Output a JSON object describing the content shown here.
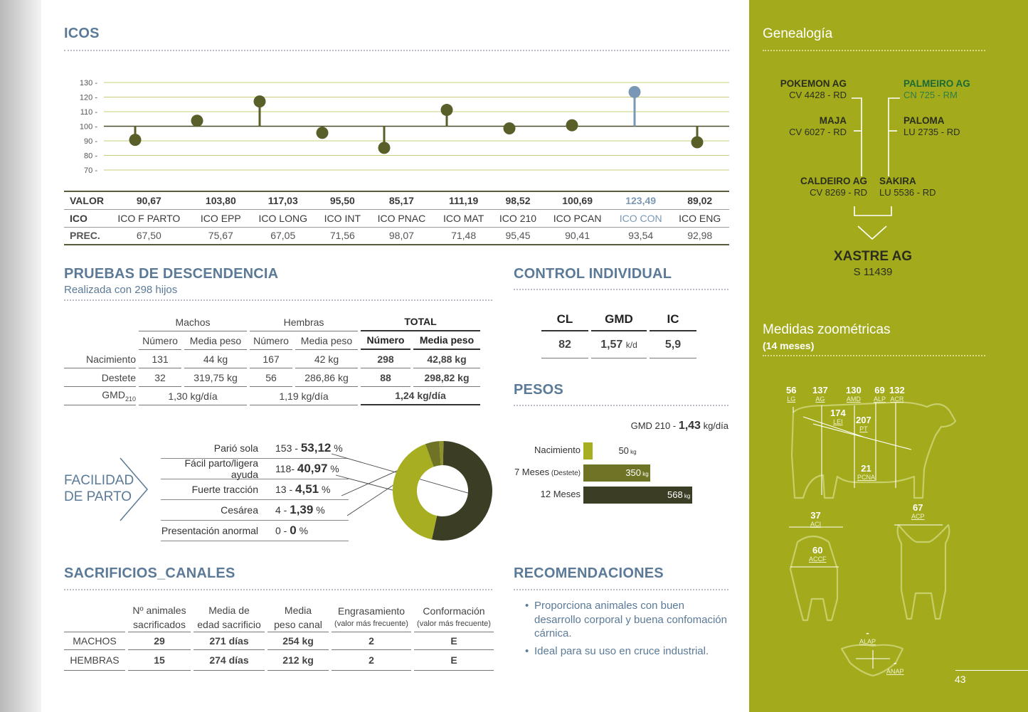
{
  "icos": {
    "title": "ICOS",
    "y_ticks": [
      "130 -",
      "120 -",
      "110 -",
      "100 -",
      "90 -",
      "80 -",
      "70 -"
    ],
    "row_labels": {
      "valor": "VALOR",
      "ico": "ICO",
      "prec": "PREC."
    },
    "items": [
      {
        "valor": "90,67",
        "ico": "ICO F PARTO",
        "prec": "67,50"
      },
      {
        "valor": "103,80",
        "ico": "ICO EPP",
        "prec": "75,67"
      },
      {
        "valor": "117,03",
        "ico": "ICO LONG",
        "prec": "67,05"
      },
      {
        "valor": "95,50",
        "ico": "ICO INT",
        "prec": "71,56"
      },
      {
        "valor": "85,17",
        "ico": "ICO PNAC",
        "prec": "98,07"
      },
      {
        "valor": "111,19",
        "ico": "ICO MAT",
        "prec": "71,48"
      },
      {
        "valor": "98,52",
        "ico": "ICO 210",
        "prec": "95,45"
      },
      {
        "valor": "100,69",
        "ico": "ICO PCAN",
        "prec": "90,41"
      },
      {
        "valor": "123,49",
        "ico": "ICO CON",
        "prec": "93,54"
      },
      {
        "valor": "89,02",
        "ico": "ICO ENG",
        "prec": "92,98"
      }
    ]
  },
  "chart_data": {
    "type": "scatter",
    "categories": [
      "ICO F PARTO",
      "ICO EPP",
      "ICO LONG",
      "ICO INT",
      "ICO PNAC",
      "ICO MAT",
      "ICO 210",
      "ICO PCAN",
      "ICO CON",
      "ICO ENG"
    ],
    "values": [
      90.67,
      103.8,
      117.03,
      95.5,
      85.17,
      111.19,
      98.52,
      100.69,
      123.49,
      89.02
    ],
    "baseline": 100,
    "ylim": [
      70,
      130
    ],
    "y_ticks": [
      70,
      80,
      90,
      100,
      110,
      120,
      130
    ],
    "grid": true,
    "colors": {
      "default": "#5a5f2a",
      "highlight": "#7a98b5"
    },
    "highlight_index": 8
  },
  "descendencia": {
    "title": "PRUEBAS DE DESCENDENCIA",
    "subtitle": "Realizada con 298 hijos",
    "groups": {
      "machos": "Machos",
      "hembras": "Hembras",
      "total": "TOTAL"
    },
    "cols": {
      "numero": "Número",
      "media": "Media peso"
    },
    "rows": [
      {
        "label": "Nacimiento",
        "m_n": "131",
        "m_p": "44 kg",
        "h_n": "167",
        "h_p": "42 kg",
        "t_n": "298",
        "t_p": "42,88 kg"
      },
      {
        "label": "Destete",
        "m_n": "32",
        "m_p": "319,75 kg",
        "h_n": "56",
        "h_p": "286,86 kg",
        "t_n": "88",
        "t_p": "298,82 kg"
      }
    ],
    "gmd": {
      "label": "GMD",
      "sub": "210",
      "machos": "1,30 kg/día",
      "hembras": "1,19 kg/día",
      "total": "1,24 kg/día"
    }
  },
  "facilidad": {
    "title_l1": "FACILIDAD",
    "title_l2": "DE PARTO",
    "items": [
      {
        "label": "Parió sola",
        "count": "153 -",
        "pct": "53,12",
        "unit": "%"
      },
      {
        "label": "Fácil parto/ligera ayuda",
        "count": "118-",
        "pct": "40,97",
        "unit": "%"
      },
      {
        "label": "Fuerte tracción",
        "count": "13 -",
        "pct": "4,51",
        "unit": "%"
      },
      {
        "label": "Cesárea",
        "count": "4 -",
        "pct": "1,39",
        "unit": "%"
      },
      {
        "label": "Presentación anormal",
        "count": "0 -",
        "pct": "0",
        "unit": "%"
      }
    ],
    "donut": {
      "values": [
        53.12,
        40.97,
        4.51,
        1.39,
        0
      ],
      "colors": [
        "#3b3e24",
        "#a7ae22",
        "#6e7326",
        "#8c922a",
        "#cccccc"
      ]
    }
  },
  "sacrificios": {
    "title": "SACRIFICIOS_CANALES",
    "headers": [
      {
        "l1": "Nº animales",
        "l2": "sacrificados"
      },
      {
        "l1": "Media de",
        "l2": "edad sacrificio"
      },
      {
        "l1": "Media",
        "l2": "peso canal"
      },
      {
        "l1": "Engrasamiento",
        "l2": "(valor más frecuente)"
      },
      {
        "l1": "Conformación",
        "l2": "(valor más frecuente)"
      }
    ],
    "rows": [
      {
        "label": "MACHOS",
        "v": [
          "29",
          "271 días",
          "254 kg",
          "2",
          "E"
        ]
      },
      {
        "label": "HEMBRAS",
        "v": [
          "15",
          "274 días",
          "212 kg",
          "2",
          "E"
        ]
      }
    ]
  },
  "control": {
    "title": "CONTROL INDIVIDUAL",
    "cl_label": "CL",
    "gmd_label": "GMD",
    "ic_label": "IC",
    "cl": "82",
    "gmd": "1,57",
    "gmd_unit": "k/d",
    "ic": "5,9"
  },
  "pesos": {
    "title": "PESOS",
    "gmd_prefix": "GMD 210 -",
    "gmd_value": "1,43",
    "gmd_unit": "kg/día",
    "bars": [
      {
        "label": "Nacimiento",
        "value": 50,
        "text": "50",
        "unit": "kg"
      },
      {
        "label": "7 Meses",
        "label_small": "(Destete)",
        "value": 350,
        "text": "350",
        "unit": "kg"
      },
      {
        "label": "12 Meses",
        "value": 568,
        "text": "568",
        "unit": "kg"
      }
    ],
    "colors": {
      "nacimiento": "#a7ae22",
      "siete": "#6e7326",
      "doce": "#3b3e24"
    }
  },
  "recomendaciones": {
    "title": "RECOMENDACIONES",
    "items": [
      "Proporciona animales con buen desarrollo corporal y buena confomación cárnica.",
      "Ideal para su uso en cruce industrial."
    ]
  },
  "genealogia": {
    "title": "Genealogía",
    "pokemon": {
      "name": "POKEMON AG",
      "code": "CV 4428 - RD"
    },
    "palmeiro": {
      "name": "PALMEIRO AG",
      "code": "CN 725 - RM"
    },
    "maja": {
      "name": "MAJA",
      "code": "CV 6027 - RD"
    },
    "paloma": {
      "name": "PALOMA",
      "code": "LU 2735 - RD"
    },
    "caldeiro": {
      "name": "CALDEIRO AG",
      "code": "CV 8269 - RD"
    },
    "sakira": {
      "name": "SAKIRA",
      "code": "LU 5536 - RD"
    },
    "xastre": {
      "name": "XASTRE AG",
      "code": "S 11439"
    }
  },
  "zoometria": {
    "title": "Medidas zoométricas",
    "subtitle": "(14 meses)",
    "measures": [
      {
        "v": "56",
        "k": "LG"
      },
      {
        "v": "137",
        "k": "AG"
      },
      {
        "v": "130",
        "k": "AMD"
      },
      {
        "v": "69",
        "k": "ALP"
      },
      {
        "v": "132",
        "k": "ACR"
      },
      {
        "v": "174",
        "k": "LEI"
      },
      {
        "v": "207",
        "k": "PT"
      },
      {
        "v": "21",
        "k": "PCNA"
      },
      {
        "v": "37",
        "k": "ACI"
      },
      {
        "v": "60",
        "k": "ACCF"
      },
      {
        "v": "67",
        "k": "ACP"
      },
      {
        "v": "-",
        "k": "ALAP"
      },
      {
        "v": "-",
        "k": "ANAP"
      }
    ]
  },
  "page_number": "43"
}
